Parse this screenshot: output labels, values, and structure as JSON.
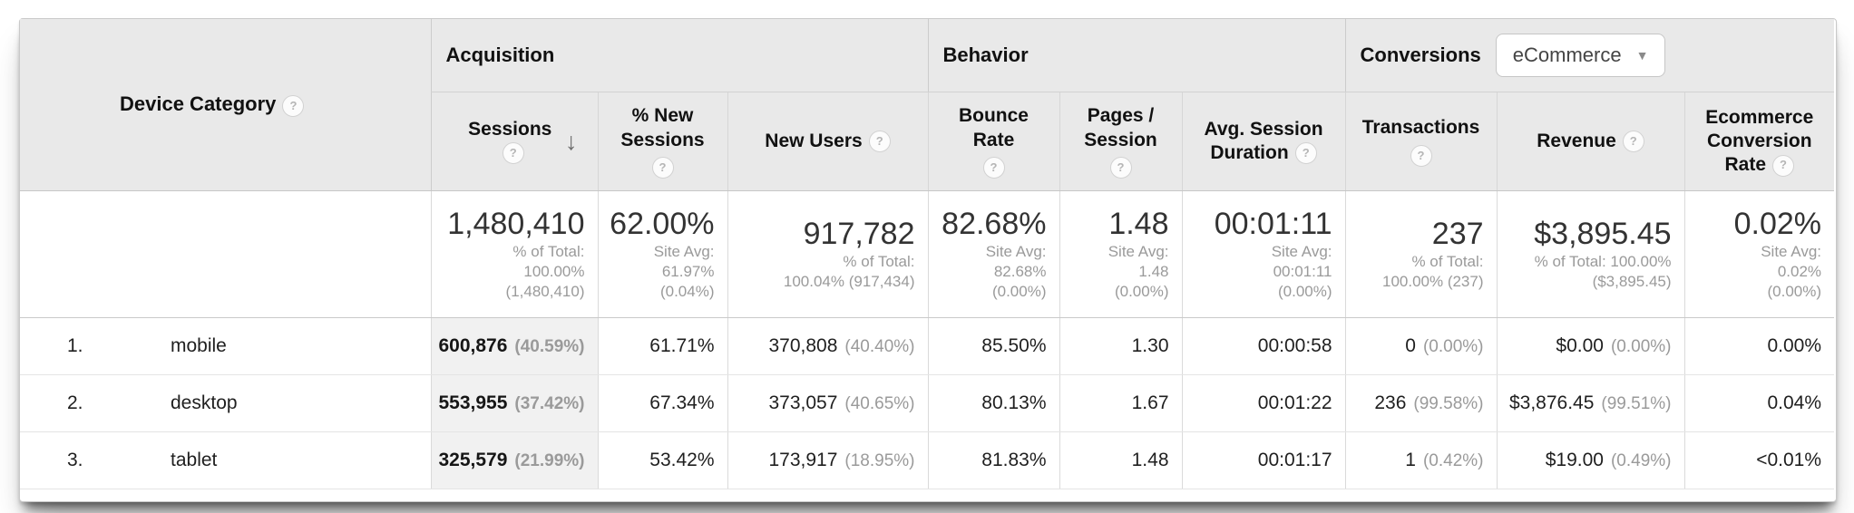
{
  "table": {
    "device_category_label": "Device Category",
    "groups": [
      {
        "label": "Acquisition"
      },
      {
        "label": "Behavior"
      },
      {
        "label": "Conversions"
      }
    ],
    "conversions_dropdown_value": "eCommerce",
    "icons": {
      "help": "?",
      "sort_desc": "↓",
      "dropdown_arrow": "▼"
    },
    "columns": {
      "sessions": "Sessions",
      "new_sessions": "% New Sessions",
      "new_users": "New Users",
      "bounce_rate": "Bounce Rate",
      "pages_session": "Pages / Session",
      "avg_session_duration": "Avg. Session Duration",
      "transactions": "Transactions",
      "revenue": "Revenue",
      "ecomm_conv_rate": "Ecommerce Conversion Rate"
    },
    "summary": [
      {
        "value": "1,480,410",
        "lines": [
          "% of Total:",
          "100.00%",
          "(1,480,410)"
        ]
      },
      {
        "value": "62.00%",
        "lines": [
          "Site Avg:",
          "61.97%",
          "(0.04%)"
        ]
      },
      {
        "value": "917,782",
        "lines": [
          "% of Total:",
          "100.04% (917,434)"
        ]
      },
      {
        "value": "82.68%",
        "lines": [
          "Site Avg:",
          "82.68%",
          "(0.00%)"
        ]
      },
      {
        "value": "1.48",
        "lines": [
          "Site Avg:",
          "1.48",
          "(0.00%)"
        ]
      },
      {
        "value": "00:01:11",
        "lines": [
          "Site Avg:",
          "00:01:11",
          "(0.00%)"
        ]
      },
      {
        "value": "237",
        "lines": [
          "% of Total:",
          "100.00% (237)"
        ]
      },
      {
        "value": "$3,895.45",
        "lines": [
          "% of Total: 100.00%",
          "($3,895.45)"
        ]
      },
      {
        "value": "0.02%",
        "lines": [
          "Site Avg:",
          "0.02%",
          "(0.00%)"
        ]
      }
    ],
    "rows": [
      {
        "rank": "1.",
        "label": "mobile",
        "sessions": "600,876",
        "sessions_pct": "(40.59%)",
        "new_sessions": "61.71%",
        "new_users": "370,808",
        "new_users_pct": "(40.40%)",
        "bounce_rate": "85.50%",
        "pages_session": "1.30",
        "avg_duration": "00:00:58",
        "transactions": "0",
        "transactions_pct": "(0.00%)",
        "revenue": "$0.00",
        "revenue_pct": "(0.00%)",
        "conv_rate": "0.00%"
      },
      {
        "rank": "2.",
        "label": "desktop",
        "sessions": "553,955",
        "sessions_pct": "(37.42%)",
        "new_sessions": "67.34%",
        "new_users": "373,057",
        "new_users_pct": "(40.65%)",
        "bounce_rate": "80.13%",
        "pages_session": "1.67",
        "avg_duration": "00:01:22",
        "transactions": "236",
        "transactions_pct": "(99.58%)",
        "revenue": "$3,876.45",
        "revenue_pct": "(99.51%)",
        "conv_rate": "0.04%"
      },
      {
        "rank": "3.",
        "label": "tablet",
        "sessions": "325,579",
        "sessions_pct": "(21.99%)",
        "new_sessions": "53.42%",
        "new_users": "173,917",
        "new_users_pct": "(18.95%)",
        "bounce_rate": "81.83%",
        "pages_session": "1.48",
        "avg_duration": "00:01:17",
        "transactions": "1",
        "transactions_pct": "(0.42%)",
        "revenue": "$19.00",
        "revenue_pct": "(0.49%)",
        "conv_rate": "<0.01%"
      }
    ]
  }
}
